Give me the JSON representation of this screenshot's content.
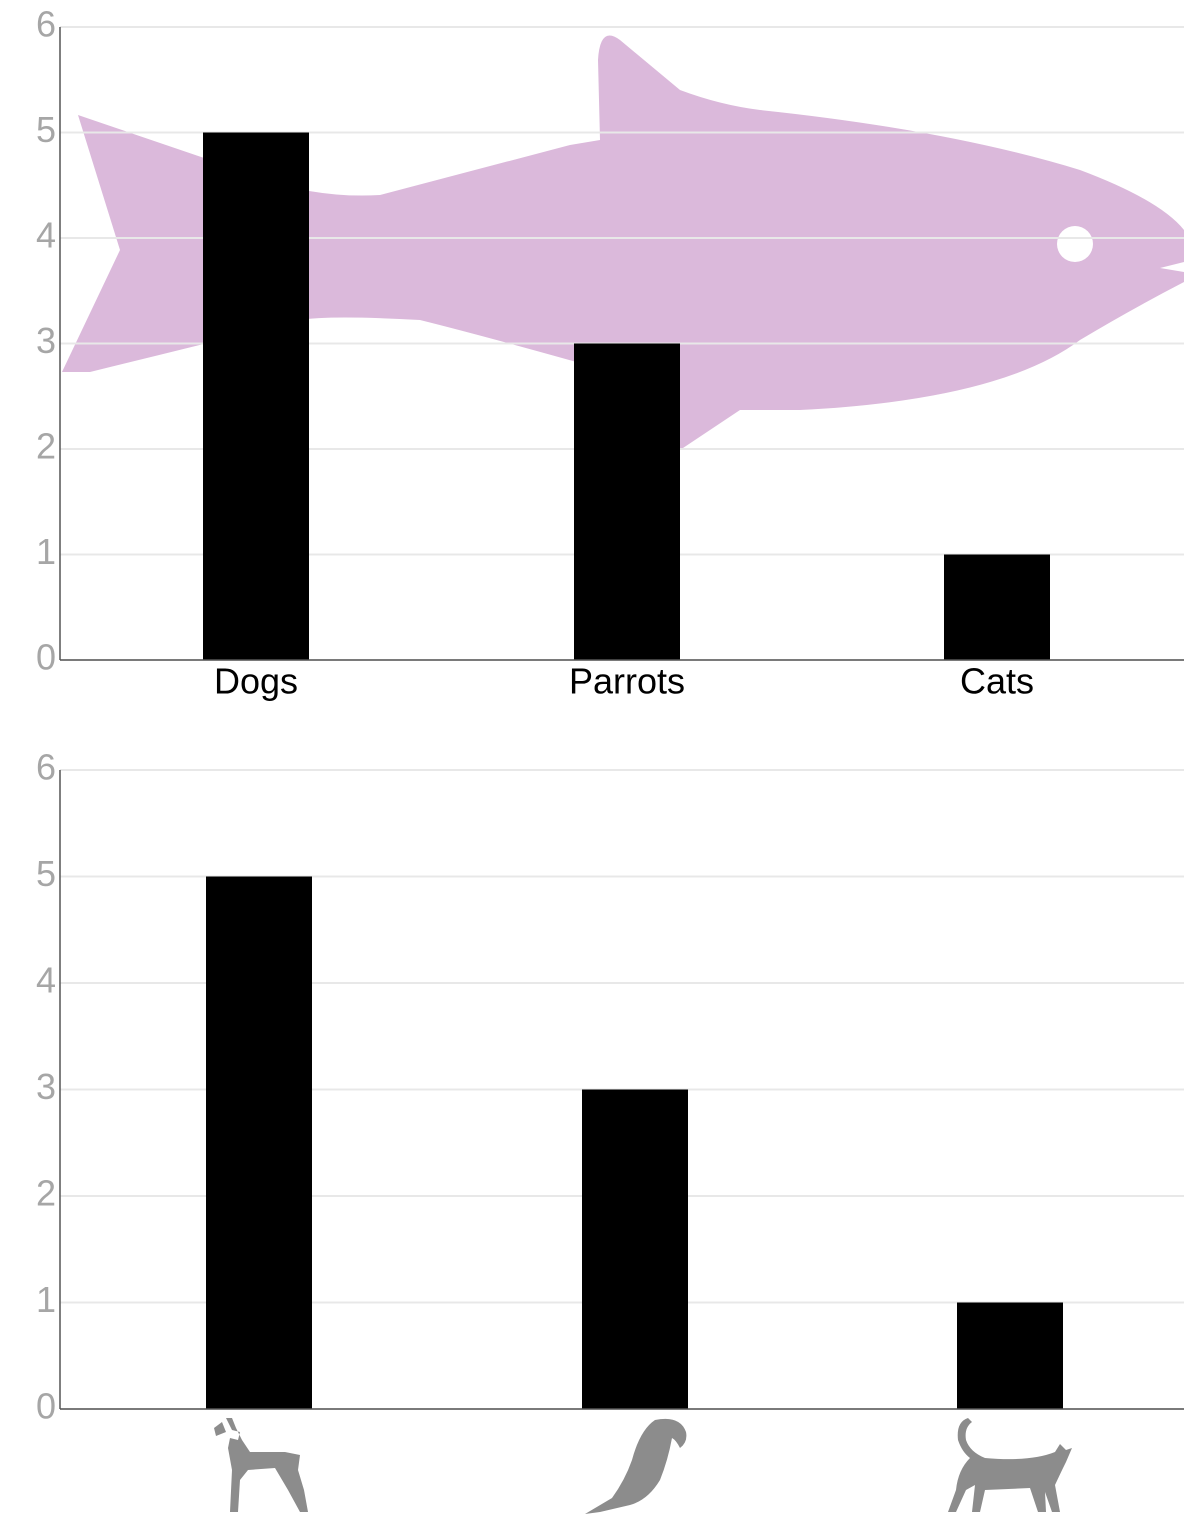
{
  "chart_data": [
    {
      "type": "bar",
      "categories": [
        "Dogs",
        "Parrots",
        "Cats"
      ],
      "values": [
        5,
        3,
        1
      ],
      "color": "#000000",
      "ylim": [
        0,
        6
      ],
      "yticks": [
        0,
        1,
        2,
        3,
        4,
        5,
        6
      ],
      "grid": true
    },
    {
      "type": "bar",
      "categories": [
        null,
        null,
        null
      ],
      "values": [
        5,
        3,
        1
      ],
      "color": "#000000",
      "ylim": [
        0,
        6
      ],
      "yticks": [
        0,
        1,
        2,
        3,
        4,
        5,
        6
      ],
      "grid": true
    }
  ]
}
